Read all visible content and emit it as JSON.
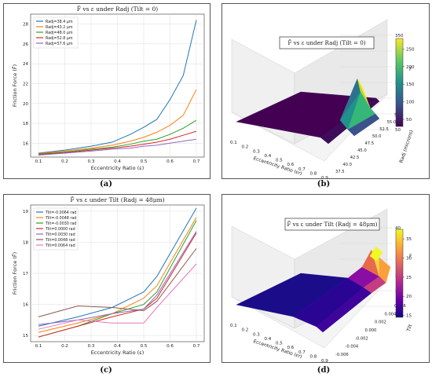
{
  "captions": {
    "a": "(a)",
    "b": "(b)",
    "c": "(c)",
    "d": "(d)"
  },
  "chart_data": [
    {
      "id": "a",
      "type": "line",
      "title": "F̄ vs ε under Radj (Tilt = 0)",
      "xlabel": "Eccentricity Ratio (ε)",
      "ylabel": "Friction Force (F̄)",
      "xlim": [
        0.07,
        0.73
      ],
      "ylim": [
        14.6,
        29.0
      ],
      "xticks": [
        0.1,
        0.2,
        0.3,
        0.4,
        0.5,
        0.6,
        0.7
      ],
      "yticks": [
        16,
        18,
        20,
        22,
        24,
        26,
        28
      ],
      "grid": true,
      "legend": "top-left",
      "x": [
        0.1,
        0.2,
        0.3,
        0.38,
        0.45,
        0.5,
        0.55,
        0.6,
        0.65,
        0.7
      ],
      "series": [
        {
          "name": "Radj=38.4 µm",
          "color": "#1f77b4",
          "values": [
            15.0,
            15.3,
            15.7,
            16.1,
            16.9,
            17.6,
            18.4,
            20.4,
            22.8,
            28.4
          ]
        },
        {
          "name": "Radj=43.2 µm",
          "color": "#ff7f0e",
          "values": [
            14.95,
            15.2,
            15.5,
            15.8,
            16.2,
            16.6,
            17.1,
            17.8,
            18.8,
            21.4
          ]
        },
        {
          "name": "Radj=48.0 µm",
          "color": "#2ca02c",
          "values": [
            14.9,
            15.1,
            15.4,
            15.6,
            15.9,
            16.2,
            16.4,
            16.9,
            17.5,
            18.3
          ]
        },
        {
          "name": "Radj=52.8 µm",
          "color": "#d62728",
          "values": [
            14.85,
            15.05,
            15.3,
            15.5,
            15.7,
            15.9,
            16.1,
            16.4,
            16.8,
            17.2
          ]
        },
        {
          "name": "Radj=57.6 µm",
          "color": "#9467bd",
          "values": [
            14.8,
            15.0,
            15.2,
            15.4,
            15.5,
            15.7,
            15.8,
            16.0,
            16.2,
            16.4
          ]
        }
      ]
    },
    {
      "id": "b",
      "type": "heatmap",
      "surface": "3d",
      "title": "F̄ vs ε under Radj (Tilt = 0)",
      "xlabel": "Eccentricity Ratio (εr)",
      "ylabel": "Radj (microns)",
      "zlabel": "F",
      "xticks": [
        "0.1",
        "0.2",
        "0.3",
        "0.4",
        "0.5",
        "0.6",
        "0.7",
        "0.8",
        "0.9"
      ],
      "yticks": [
        "37.5",
        "40.0",
        "42.5",
        "45.0",
        "47.5",
        "50.0",
        "52.5",
        "55.0",
        "57.5"
      ],
      "zticks": [
        "50",
        "100",
        "150",
        "200",
        "250",
        "300",
        "350"
      ],
      "colorbar": {
        "colormap": "viridis",
        "ticks": [
          "50",
          "100",
          "150",
          "200",
          "250"
        ]
      }
    },
    {
      "id": "c",
      "type": "line",
      "title": "F̄ vs ε under Tilt (Radj = 48μm)",
      "xlabel": "Eccentricity Ratio (ε)",
      "ylabel": "Friction Force (F̄)",
      "xlim": [
        0.07,
        0.73
      ],
      "ylim": [
        14.8,
        19.2
      ],
      "xticks": [
        0.1,
        0.2,
        0.3,
        0.4,
        0.5,
        0.6,
        0.7
      ],
      "yticks": [
        15,
        16,
        17,
        18,
        19
      ],
      "grid": true,
      "legend": "top-left",
      "x": [
        0.1,
        0.25,
        0.38,
        0.5,
        0.55,
        0.7
      ],
      "series": [
        {
          "name": "Tilt=-0.0064 rad",
          "color": "#1f77b4",
          "values": [
            15.3,
            15.6,
            15.9,
            16.4,
            16.9,
            19.1
          ]
        },
        {
          "name": "Tilt=-0.0048 rad",
          "color": "#ff7f0e",
          "values": [
            15.1,
            15.4,
            15.7,
            16.2,
            16.6,
            18.8
          ]
        },
        {
          "name": "Tilt=-0.0030 rad",
          "color": "#2ca02c",
          "values": [
            14.95,
            15.3,
            15.7,
            16.0,
            16.4,
            18.7
          ]
        },
        {
          "name": "Tilt=0.0000 rad",
          "color": "#d62728",
          "values": [
            14.95,
            15.3,
            15.6,
            15.85,
            16.2,
            18.3
          ]
        },
        {
          "name": "Tilt=0.0030 rad",
          "color": "#9467bd",
          "values": [
            15.35,
            15.5,
            15.7,
            15.85,
            16.3,
            18.35
          ]
        },
        {
          "name": "Tilt=0.0048 rad",
          "color": "#8c564b",
          "values": [
            15.6,
            15.95,
            15.9,
            15.8,
            16.1,
            17.8
          ]
        },
        {
          "name": "Tilt=0.0064 rad",
          "color": "#e377c2",
          "values": [
            15.2,
            15.5,
            15.4,
            15.4,
            15.9,
            17.3
          ]
        }
      ]
    },
    {
      "id": "d",
      "type": "heatmap",
      "surface": "3d",
      "title": "F̄ vs ε under Tilt (Radj = 48μm)",
      "xlabel": "Eccentricity Ratio (εr)",
      "ylabel": "Tilt",
      "zlabel": "F",
      "xticks": [
        "0.1",
        "0.2",
        "0.3",
        "0.4",
        "0.5",
        "0.6",
        "0.7",
        "0.8",
        "0.9"
      ],
      "yticks": [
        "-0.006",
        "-0.004",
        "-0.002",
        "0.000",
        "0.002",
        "0.004",
        "0.006"
      ],
      "zticks": [
        "15",
        "20",
        "25",
        "30",
        "35",
        "40"
      ],
      "colorbar": {
        "colormap": "plasma",
        "ticks": [
          "15",
          "20",
          "25",
          "30",
          "35"
        ]
      }
    }
  ]
}
